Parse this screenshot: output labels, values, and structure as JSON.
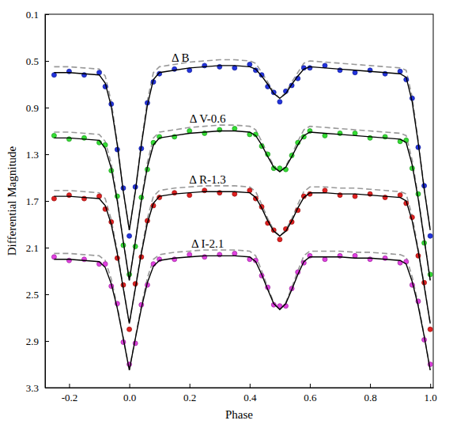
{
  "chart_data": {
    "type": "scatter",
    "x_label": "Phase",
    "y_label": "Differential Magnitude",
    "xlim": [
      -0.28,
      1.01
    ],
    "ylim": [
      3.3,
      0.1
    ],
    "xticks": [
      -0.2,
      {
        "value": 0,
        "label": "0.0"
      },
      0.2,
      0.4,
      0.6,
      0.8,
      {
        "value": 1,
        "label": "1.0"
      }
    ],
    "yticks": [
      0.1,
      0.5,
      0.9,
      1.3,
      1.7,
      2.1,
      2.5,
      2.9,
      3.3
    ],
    "x": [
      -0.25,
      -0.2,
      -0.15,
      -0.1,
      -0.08,
      -0.06,
      -0.04,
      -0.02,
      0,
      0.02,
      0.04,
      0.06,
      0.08,
      0.1,
      0.15,
      0.2,
      0.25,
      0.3,
      0.35,
      0.4,
      0.42,
      0.44,
      0.46,
      0.48,
      0.5,
      0.52,
      0.54,
      0.56,
      0.58,
      0.6,
      0.65,
      0.7,
      0.75,
      0.8,
      0.85,
      0.9,
      0.92,
      0.94,
      0.96,
      0.98,
      1.0
    ],
    "series": [
      {
        "name": "Δ B",
        "type": "scatter",
        "marker": "circle",
        "color": "#2233dd",
        "values": [
          0.62,
          0.59,
          0.62,
          0.6,
          0.72,
          0.87,
          1.26,
          1.59,
          2.0,
          1.58,
          1.25,
          0.86,
          0.68,
          0.61,
          0.57,
          0.58,
          0.54,
          0.55,
          0.56,
          0.53,
          0.58,
          0.62,
          0.72,
          0.77,
          0.85,
          0.76,
          0.71,
          0.65,
          0.56,
          0.56,
          0.54,
          0.58,
          0.6,
          0.58,
          0.61,
          0.59,
          0.66,
          0.82,
          1.24,
          1.57,
          2.0
        ]
      },
      {
        "type": "line",
        "line_style": "solid",
        "color": "#000000",
        "values": [
          0.6,
          0.6,
          0.61,
          0.62,
          0.69,
          0.89,
          1.22,
          1.62,
          1.95,
          1.62,
          1.22,
          0.88,
          0.66,
          0.6,
          0.58,
          0.56,
          0.55,
          0.54,
          0.54,
          0.55,
          0.57,
          0.63,
          0.7,
          0.78,
          0.82,
          0.78,
          0.7,
          0.63,
          0.57,
          0.55,
          0.56,
          0.57,
          0.58,
          0.59,
          0.6,
          0.61,
          0.64,
          0.85,
          1.2,
          1.6,
          1.95
        ]
      },
      {
        "type": "line",
        "line_style": "dashed",
        "color": "#999999",
        "values": [
          0.55,
          0.55,
          0.56,
          0.57,
          0.63,
          0.85,
          1.2,
          1.61,
          1.95,
          1.61,
          1.2,
          0.84,
          0.6,
          0.55,
          0.53,
          0.51,
          0.5,
          0.49,
          0.49,
          0.5,
          0.52,
          0.6,
          0.68,
          0.77,
          0.82,
          0.77,
          0.68,
          0.6,
          0.52,
          0.5,
          0.51,
          0.52,
          0.53,
          0.54,
          0.55,
          0.56,
          0.58,
          0.81,
          1.18,
          1.59,
          1.95
        ]
      },
      {
        "name": "Δ V-0.6",
        "type": "scatter",
        "marker": "circle",
        "color": "#33dd33",
        "values": [
          1.14,
          1.17,
          1.16,
          1.2,
          1.22,
          1.44,
          1.66,
          2.08,
          2.33,
          2.09,
          1.67,
          1.43,
          1.2,
          1.15,
          1.15,
          1.1,
          1.12,
          1.09,
          1.08,
          1.13,
          1.13,
          1.23,
          1.3,
          1.42,
          1.42,
          1.43,
          1.31,
          1.2,
          1.15,
          1.1,
          1.14,
          1.12,
          1.12,
          1.16,
          1.15,
          1.19,
          1.18,
          1.42,
          1.64,
          2.06,
          2.33
        ]
      },
      {
        "type": "line",
        "line_style": "solid",
        "color": "#000000",
        "values": [
          1.16,
          1.16,
          1.17,
          1.18,
          1.25,
          1.42,
          1.7,
          2.05,
          2.38,
          2.05,
          1.7,
          1.41,
          1.22,
          1.16,
          1.14,
          1.12,
          1.11,
          1.1,
          1.1,
          1.11,
          1.14,
          1.22,
          1.32,
          1.41,
          1.45,
          1.41,
          1.32,
          1.22,
          1.14,
          1.11,
          1.12,
          1.13,
          1.14,
          1.15,
          1.16,
          1.17,
          1.2,
          1.39,
          1.68,
          2.03,
          2.38
        ]
      },
      {
        "type": "line",
        "line_style": "dashed",
        "color": "#999999",
        "values": [
          1.11,
          1.11,
          1.12,
          1.13,
          1.19,
          1.38,
          1.68,
          2.04,
          2.38,
          2.04,
          1.68,
          1.37,
          1.16,
          1.11,
          1.09,
          1.07,
          1.06,
          1.05,
          1.05,
          1.06,
          1.09,
          1.19,
          1.3,
          1.4,
          1.45,
          1.4,
          1.3,
          1.19,
          1.09,
          1.06,
          1.07,
          1.08,
          1.09,
          1.1,
          1.11,
          1.12,
          1.14,
          1.35,
          1.66,
          2.02,
          2.38
        ]
      },
      {
        "name": "Δ R-1.3",
        "type": "scatter",
        "marker": "circle",
        "color": "#e02020",
        "values": [
          1.68,
          1.65,
          1.68,
          1.66,
          1.77,
          1.88,
          2.19,
          2.42,
          2.8,
          2.41,
          2.18,
          1.87,
          1.74,
          1.67,
          1.63,
          1.65,
          1.61,
          1.63,
          1.64,
          1.61,
          1.68,
          1.75,
          1.89,
          1.95,
          2.03,
          1.94,
          1.88,
          1.78,
          1.66,
          1.64,
          1.61,
          1.65,
          1.66,
          1.64,
          1.67,
          1.65,
          1.72,
          1.84,
          2.17,
          2.4,
          2.8
        ]
      },
      {
        "type": "line",
        "line_style": "solid",
        "color": "#000000",
        "values": [
          1.66,
          1.66,
          1.67,
          1.68,
          1.74,
          1.9,
          2.15,
          2.45,
          2.75,
          2.45,
          2.15,
          1.89,
          1.72,
          1.66,
          1.64,
          1.63,
          1.62,
          1.62,
          1.62,
          1.63,
          1.67,
          1.76,
          1.87,
          1.96,
          2.0,
          1.96,
          1.87,
          1.76,
          1.67,
          1.63,
          1.63,
          1.64,
          1.64,
          1.65,
          1.66,
          1.67,
          1.7,
          1.87,
          2.13,
          2.43,
          2.75
        ]
      },
      {
        "type": "line",
        "line_style": "dashed",
        "color": "#999999",
        "values": [
          1.61,
          1.61,
          1.62,
          1.63,
          1.68,
          1.86,
          2.13,
          2.44,
          2.75,
          2.44,
          2.13,
          1.85,
          1.66,
          1.61,
          1.59,
          1.58,
          1.57,
          1.57,
          1.57,
          1.58,
          1.62,
          1.73,
          1.85,
          1.95,
          2.0,
          1.95,
          1.85,
          1.73,
          1.62,
          1.58,
          1.58,
          1.59,
          1.59,
          1.6,
          1.61,
          1.62,
          1.64,
          1.83,
          2.11,
          2.42,
          2.75
        ]
      },
      {
        "name": "Δ I-2.1",
        "type": "scatter",
        "marker": "circle",
        "color": "#e040e0",
        "values": [
          2.18,
          2.21,
          2.2,
          2.24,
          2.24,
          2.43,
          2.58,
          2.91,
          3.1,
          2.92,
          2.59,
          2.42,
          2.24,
          2.2,
          2.2,
          2.16,
          2.18,
          2.16,
          2.15,
          2.2,
          2.21,
          2.34,
          2.44,
          2.59,
          2.6,
          2.6,
          2.45,
          2.31,
          2.23,
          2.17,
          2.2,
          2.17,
          2.17,
          2.2,
          2.19,
          2.23,
          2.22,
          2.42,
          2.56,
          2.89,
          3.1
        ]
      },
      {
        "type": "line",
        "line_style": "solid",
        "color": "#000000",
        "values": [
          2.2,
          2.2,
          2.21,
          2.22,
          2.27,
          2.41,
          2.62,
          2.88,
          3.15,
          2.88,
          2.62,
          2.4,
          2.26,
          2.21,
          2.19,
          2.18,
          2.17,
          2.17,
          2.17,
          2.18,
          2.22,
          2.33,
          2.46,
          2.58,
          2.63,
          2.58,
          2.46,
          2.33,
          2.22,
          2.18,
          2.18,
          2.18,
          2.19,
          2.19,
          2.2,
          2.21,
          2.24,
          2.39,
          2.6,
          2.86,
          3.15
        ]
      },
      {
        "type": "line",
        "line_style": "dashed",
        "color": "#999999",
        "values": [
          2.15,
          2.15,
          2.16,
          2.17,
          2.21,
          2.37,
          2.6,
          2.87,
          3.15,
          2.87,
          2.6,
          2.36,
          2.2,
          2.16,
          2.14,
          2.13,
          2.12,
          2.12,
          2.12,
          2.13,
          2.17,
          2.3,
          2.44,
          2.57,
          2.63,
          2.57,
          2.44,
          2.3,
          2.17,
          2.13,
          2.13,
          2.13,
          2.14,
          2.14,
          2.15,
          2.16,
          2.18,
          2.35,
          2.58,
          2.85,
          3.15
        ]
      }
    ]
  }
}
